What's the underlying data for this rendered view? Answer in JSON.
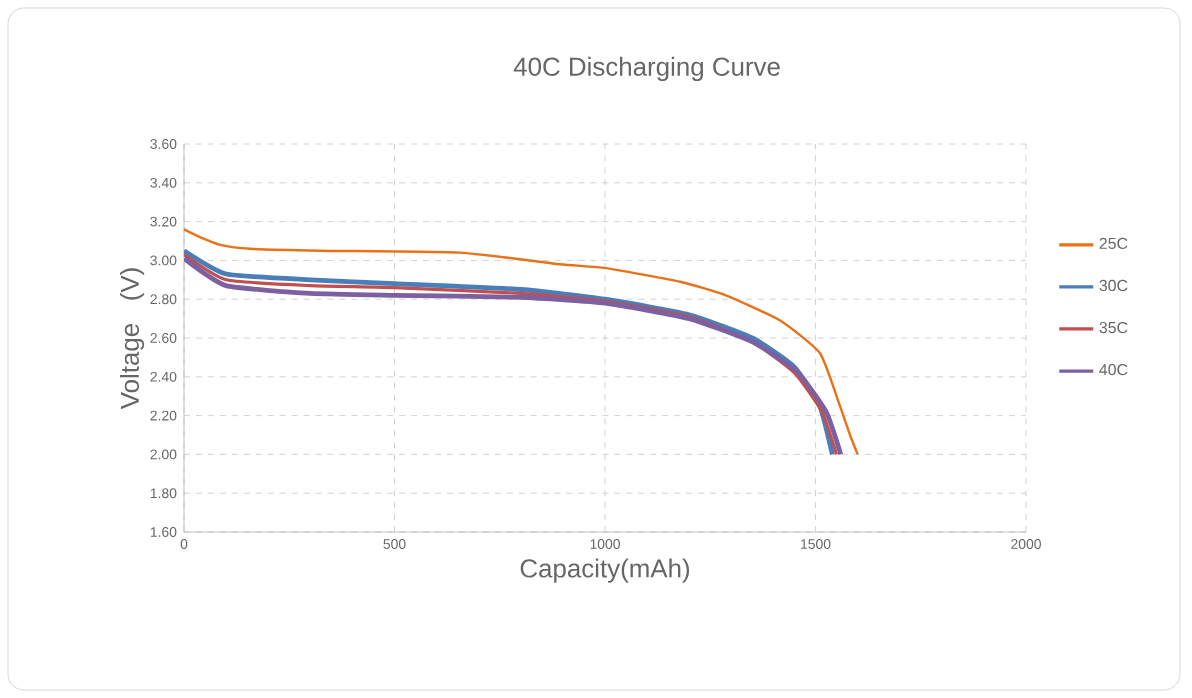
{
  "chart_data": {
    "type": "line",
    "title": "40C Discharging Curve",
    "xlabel": "Capacity(mAh)",
    "ylabel": "Voltage   (V)",
    "xlim": [
      0,
      2000
    ],
    "xticks": [
      0,
      500,
      1000,
      1500,
      2000
    ],
    "ylim": [
      1.6,
      3.6
    ],
    "yticks": [
      {
        "value": 1.6,
        "label": "1.60"
      },
      {
        "value": 1.8,
        "label": "1.80"
      },
      {
        "value": 2.0,
        "label": "2.00"
      },
      {
        "value": 2.2,
        "label": "2.20"
      },
      {
        "value": 2.4,
        "label": "2.40"
      },
      {
        "value": 2.6,
        "label": "2.60"
      },
      {
        "value": 2.8,
        "label": "2.80"
      },
      {
        "value": 3.0,
        "label": "3.00"
      },
      {
        "value": 3.2,
        "label": "3.20"
      },
      {
        "value": 3.4,
        "label": "3.40"
      },
      {
        "value": 3.6,
        "label": "3.60"
      }
    ],
    "grid": true,
    "legend": "right",
    "marker": "none",
    "line_style": "solid",
    "series": [
      {
        "name": "25C",
        "color": "#e8711a",
        "x": [
          0,
          38,
          86,
          157,
          323,
          656,
          893,
          1002,
          1178,
          1287,
          1416,
          1511,
          1558,
          1582,
          1600
        ],
        "values": [
          3.16,
          3.12,
          3.08,
          3.06,
          3.05,
          3.04,
          2.98,
          2.96,
          2.89,
          2.82,
          2.69,
          2.52,
          2.25,
          2.1,
          2.0
        ]
      },
      {
        "name": "30C",
        "color": "#4a7ebb",
        "x": [
          0,
          100,
          300,
          500,
          800,
          1000,
          1200,
          1350,
          1450,
          1510,
          1540
        ],
        "values": [
          3.05,
          2.93,
          2.9,
          2.88,
          2.85,
          2.8,
          2.72,
          2.6,
          2.45,
          2.25,
          2.0
        ]
      },
      {
        "name": "35C",
        "color": "#c0504d",
        "x": [
          0,
          100,
          300,
          500,
          800,
          1000,
          1200,
          1350,
          1450,
          1515,
          1550
        ],
        "values": [
          3.03,
          2.9,
          2.87,
          2.86,
          2.83,
          2.79,
          2.71,
          2.58,
          2.42,
          2.22,
          2.0
        ]
      },
      {
        "name": "40C",
        "color": "#7d60a0",
        "x": [
          0,
          100,
          300,
          500,
          800,
          1000,
          1200,
          1350,
          1455,
          1525,
          1560
        ],
        "values": [
          3.01,
          2.87,
          2.83,
          2.82,
          2.81,
          2.78,
          2.7,
          2.58,
          2.43,
          2.22,
          2.0
        ]
      }
    ]
  }
}
